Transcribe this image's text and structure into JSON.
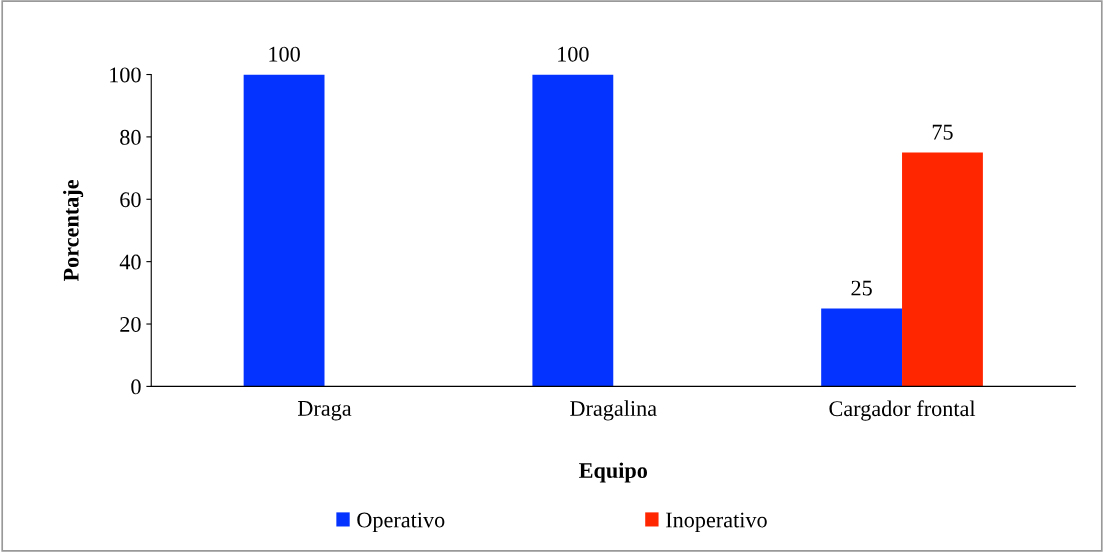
{
  "chart_data": {
    "type": "bar",
    "xlabel": "Equipo",
    "ylabel": "Porcentaje",
    "categories": [
      "Draga",
      "Dragalina",
      "Cargador frontal"
    ],
    "series": [
      {
        "name": "Operativo",
        "color": "#0433ff",
        "values": [
          100,
          100,
          25
        ],
        "value_labels": [
          "100",
          "100",
          "25"
        ]
      },
      {
        "name": "Inoperativo",
        "color": "#ff2600",
        "values": [
          0,
          0,
          75
        ],
        "value_labels": [
          null,
          null,
          "75"
        ]
      }
    ],
    "ylim": [
      0,
      100
    ],
    "yticks": [
      0,
      20,
      40,
      60,
      80,
      100
    ],
    "grid": false,
    "legend": "bottom"
  }
}
